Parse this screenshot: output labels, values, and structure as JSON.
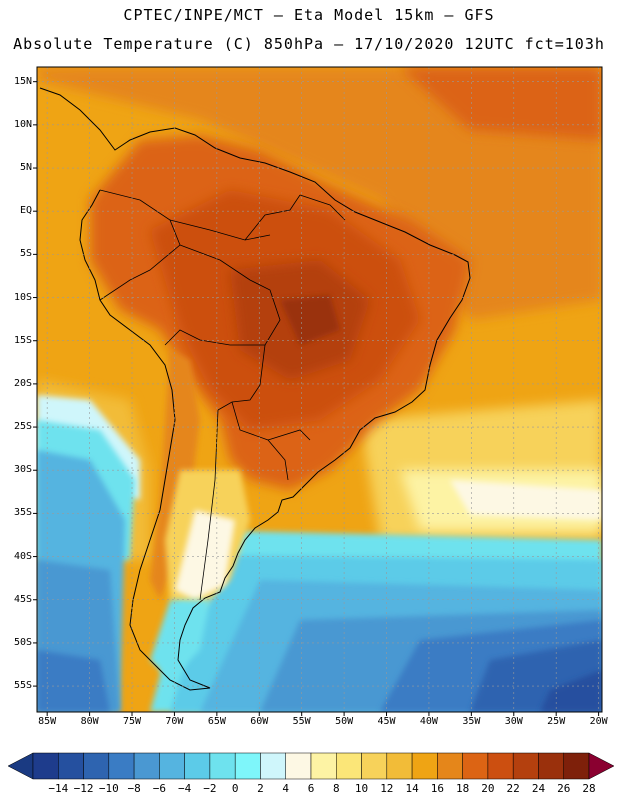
{
  "header": {
    "line1": "CPTEC/INPE/MCT –  Eta Model 15km – GFS",
    "line2": "Absolute Temperature (C) 850hPa – 17/10/2020 12UTC fct=103h"
  },
  "map": {
    "lat_labels": [
      "15N",
      "10N",
      "5N",
      "EQ",
      "5S",
      "10S",
      "15S",
      "20S",
      "25S",
      "30S",
      "35S",
      "40S",
      "45S",
      "50S",
      "55S"
    ],
    "lon_labels": [
      "85W",
      "80W",
      "75W",
      "70W",
      "65W",
      "60W",
      "55W",
      "50W",
      "45W",
      "40W",
      "35W",
      "30W",
      "25W",
      "20W"
    ],
    "gridlines": true
  },
  "legend": {
    "labels": [
      "-14",
      "-12",
      "-10",
      "-8",
      "-6",
      "-4",
      "-2",
      "0",
      "2",
      "4",
      "6",
      "8",
      "10",
      "12",
      "14",
      "16",
      "18",
      "20",
      "22",
      "24",
      "26",
      "28"
    ],
    "colors": [
      "#1e3c8c",
      "#25509f",
      "#2e64b0",
      "#3a7cc4",
      "#4a98d2",
      "#55b4e0",
      "#5ccbe8",
      "#6ee2ee",
      "#7ef6fa",
      "#cff6fb",
      "#fdf8e4",
      "#fdf3a4",
      "#fbe678",
      "#f7d25a",
      "#f2bc38",
      "#efa414",
      "#e5861a",
      "#dc6414",
      "#cc4f10",
      "#b4400e",
      "#9a300c",
      "#7e200a"
    ],
    "under_color": "#1a3a82",
    "over_color": "#8a0030"
  }
}
